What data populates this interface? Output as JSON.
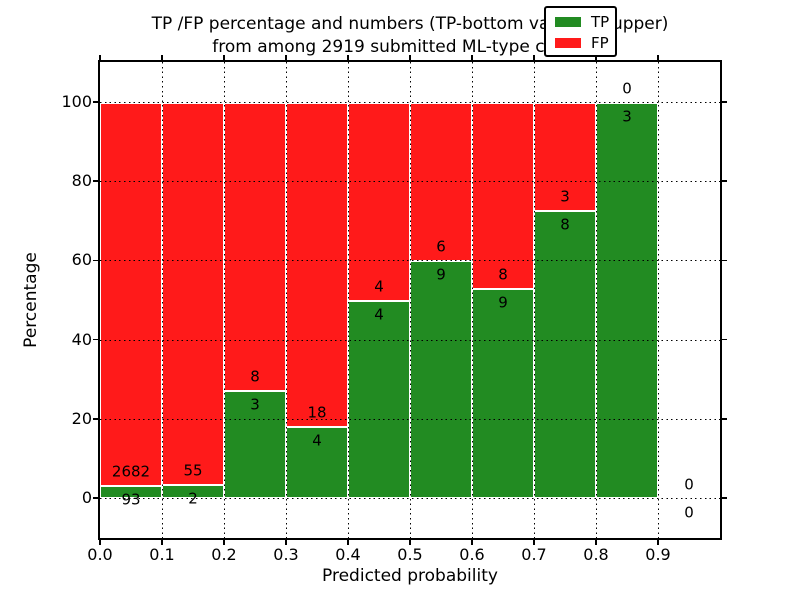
{
  "chart_data": {
    "type": "bar",
    "stacked": true,
    "unit": "percent",
    "title_lines": [
      "TP /FP percentage and numbers (TP-bottom value, FP-upper)",
      "from among 2919 submitted ML-type contacts"
    ],
    "xlabel": "Predicted probability",
    "ylabel": "Percentage",
    "xlim": [
      0.0,
      1.0
    ],
    "ylim": [
      -10,
      110
    ],
    "grid": true,
    "legend_position": "upper right",
    "x_tick_labels": [
      "0.0",
      "0.1",
      "0.2",
      "0.3",
      "0.4",
      "0.5",
      "0.6",
      "0.7",
      "0.8",
      "0.9"
    ],
    "y_ticks": [
      {
        "value": 0,
        "label": "0"
      },
      {
        "value": 20,
        "label": "20"
      },
      {
        "value": 40,
        "label": "40"
      },
      {
        "value": 60,
        "label": "60"
      },
      {
        "value": 80,
        "label": "80"
      },
      {
        "value": 100,
        "label": "100"
      }
    ],
    "bins": [
      {
        "range": "0.0-0.1",
        "tp": 93,
        "fp": 2682,
        "tp_pct": 3.35
      },
      {
        "range": "0.1-0.2",
        "tp": 2,
        "fp": 55,
        "tp_pct": 3.51
      },
      {
        "range": "0.2-0.3",
        "tp": 3,
        "fp": 8,
        "tp_pct": 27.27
      },
      {
        "range": "0.3-0.4",
        "tp": 4,
        "fp": 18,
        "tp_pct": 18.18
      },
      {
        "range": "0.4-0.5",
        "tp": 4,
        "fp": 4,
        "tp_pct": 50.0
      },
      {
        "range": "0.5-0.6",
        "tp": 9,
        "fp": 6,
        "tp_pct": 60.0
      },
      {
        "range": "0.6-0.7",
        "tp": 9,
        "fp": 8,
        "tp_pct": 52.94
      },
      {
        "range": "0.7-0.8",
        "tp": 8,
        "fp": 3,
        "tp_pct": 72.73
      },
      {
        "range": "0.8-0.9",
        "tp": 3,
        "fp": 0,
        "tp_pct": 100.0
      },
      {
        "range": "0.9-1.0",
        "tp": 0,
        "fp": 0,
        "tp_pct": 0.0
      }
    ],
    "legend": [
      {
        "label": "TP",
        "color": "#228b22"
      },
      {
        "label": "FP",
        "color": "#ff1a1a"
      }
    ]
  },
  "colors": {
    "tp": "#228b22",
    "fp": "#ff1a1a",
    "bar_edge": "#ffffff",
    "grid": "#000000",
    "text": "#000000",
    "background": "#ffffff"
  }
}
